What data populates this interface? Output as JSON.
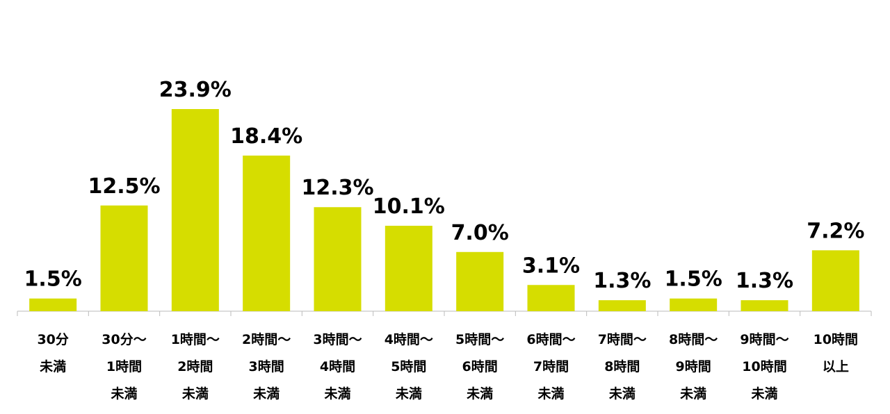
{
  "chart_data": {
    "type": "bar",
    "color": "#d6dd00",
    "categories": [
      [
        "30分",
        "未満"
      ],
      [
        "30分～",
        "1時間",
        "未満"
      ],
      [
        "1時間～",
        "2時間",
        "未満"
      ],
      [
        "2時間～",
        "3時間",
        "未満"
      ],
      [
        "3時間～",
        "4時間",
        "未満"
      ],
      [
        "4時間～",
        "5時間",
        "未満"
      ],
      [
        "5時間～",
        "6時間",
        "未満"
      ],
      [
        "6時間～",
        "7時間",
        "未満"
      ],
      [
        "7時間～",
        "8時間",
        "未満"
      ],
      [
        "8時間～",
        "9時間",
        "未満"
      ],
      [
        "9時間～",
        "10時間",
        "未満"
      ],
      [
        "10時間",
        "以上"
      ]
    ],
    "values": [
      1.5,
      12.5,
      23.9,
      18.4,
      12.3,
      10.1,
      7.0,
      3.1,
      1.3,
      1.5,
      1.3,
      7.2
    ],
    "value_labels": [
      "1.5%",
      "12.5%",
      "23.9%",
      "18.4%",
      "12.3%",
      "10.1%",
      "7.0%",
      "3.1%",
      "1.3%",
      "1.5%",
      "1.3%",
      "7.2%"
    ]
  }
}
